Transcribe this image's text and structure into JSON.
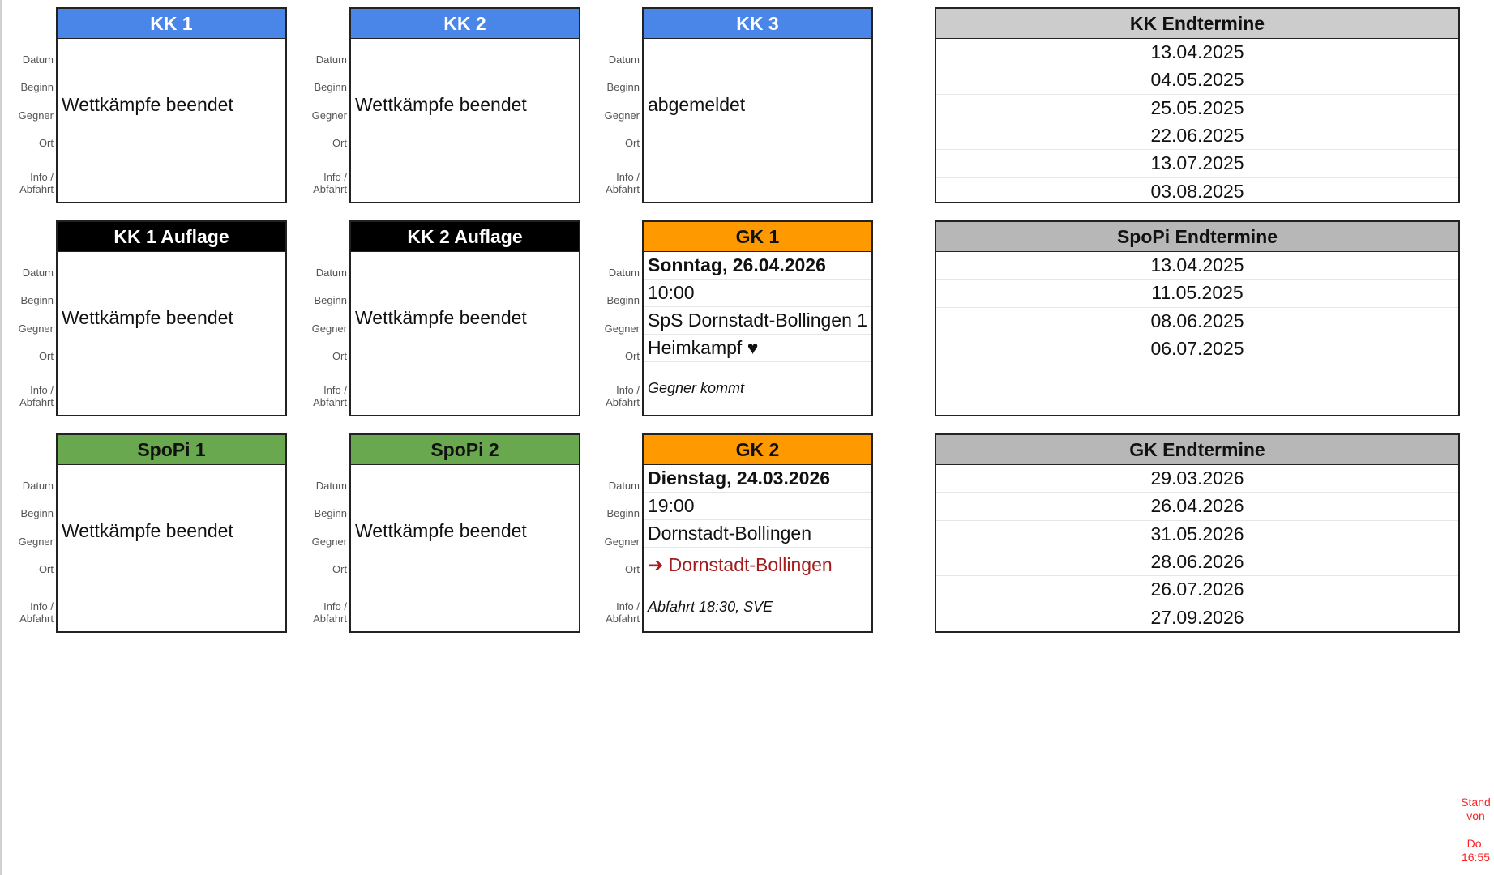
{
  "colors": {
    "kk": "#4a86e8",
    "auflage": "#000000",
    "spopi": "#6aa84f",
    "gk": "#ff9900",
    "endtermine_kk": "#cccccc",
    "endtermine": "#b7b7b7",
    "away": "#a61c1c",
    "stand": "#ff2020"
  },
  "labels": [
    "Datum",
    "Beginn",
    "Gegner",
    "Ort",
    "Info / Abfahrt"
  ],
  "cards": [
    {
      "title": "KK 1",
      "col": 0,
      "row": 0,
      "theme": "kk",
      "message": "Wettkämpfe beendet"
    },
    {
      "title": "KK 2",
      "col": 1,
      "row": 0,
      "theme": "kk",
      "message": "Wettkämpfe beendet"
    },
    {
      "title": "KK 3",
      "col": 2,
      "row": 0,
      "theme": "kk",
      "message": "abgemeldet"
    },
    {
      "title": "KK 1 Auflage",
      "col": 0,
      "row": 1,
      "theme": "auflage",
      "message": "Wettkämpfe beendet"
    },
    {
      "title": "KK 2 Auflage",
      "col": 1,
      "row": 1,
      "theme": "auflage",
      "message": "Wettkämpfe beendet"
    },
    {
      "title": "GK 1",
      "col": 2,
      "row": 1,
      "theme": "gk",
      "datum": "Sonntag, 26.04.2026",
      "beginn": "10:00",
      "gegner": "SpS Dornstadt-Bollingen 1",
      "ort": "Heimkampf ♥",
      "ort_away": false,
      "info": "Gegner kommt"
    },
    {
      "title": "SpoPi 1",
      "col": 0,
      "row": 2,
      "theme": "spopi",
      "message": "Wettkämpfe beendet"
    },
    {
      "title": "SpoPi 2",
      "col": 1,
      "row": 2,
      "theme": "spopi",
      "message": "Wettkämpfe beendet"
    },
    {
      "title": "GK 2",
      "col": 2,
      "row": 2,
      "theme": "gk",
      "datum": "Dienstag, 24.03.2026",
      "beginn": "19:00",
      "gegner": "Dornstadt-Bollingen",
      "ort": "➔ Dornstadt-Bollingen",
      "ort_away": true,
      "info": "Abfahrt 18:30, SVE"
    }
  ],
  "endtermine": [
    {
      "title": "KK Endtermine",
      "theme": "endtermine_kk",
      "dates": [
        "13.04.2025",
        "04.05.2025",
        "25.05.2025",
        "22.06.2025",
        "13.07.2025",
        "03.08.2025"
      ]
    },
    {
      "title": "SpoPi Endtermine",
      "theme": "endtermine",
      "dates": [
        "13.04.2025",
        "11.05.2025",
        "08.06.2025",
        "06.07.2025"
      ]
    },
    {
      "title": "GK Endtermine",
      "theme": "endtermine",
      "dates": [
        "29.03.2026",
        "26.04.2026",
        "31.05.2026",
        "28.06.2026",
        "26.07.2026",
        "27.09.2026"
      ]
    }
  ],
  "stand": {
    "line1": "Stand",
    "line2": "von",
    "line3": "Do.",
    "line4": "16:55"
  }
}
